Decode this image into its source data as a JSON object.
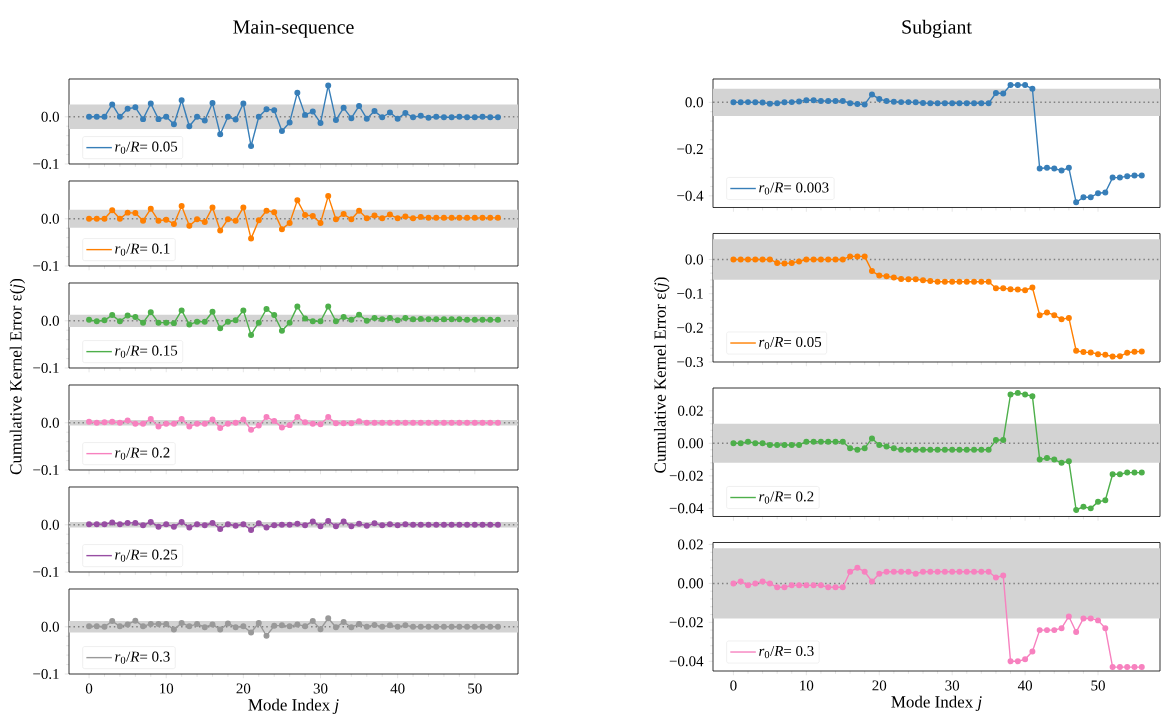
{
  "chart_data": [
    {
      "type": "line",
      "title": "Main-sequence",
      "x": [
        0,
        1,
        2,
        3,
        4,
        5,
        6,
        7,
        8,
        9,
        10,
        11,
        12,
        13,
        14,
        15,
        16,
        17,
        18,
        19,
        20,
        21,
        22,
        23,
        24,
        25,
        26,
        27,
        28,
        29,
        30,
        31,
        32,
        33,
        34,
        35,
        36,
        37,
        38,
        39,
        40,
        41,
        42,
        43,
        44,
        45,
        46,
        47,
        48,
        49,
        50,
        51,
        52,
        53
      ],
      "xlim": [
        -2.6,
        55.6
      ],
      "xticks": [
        0,
        10,
        20,
        30,
        40,
        50
      ],
      "ylim": [
        -0.1,
        0.08
      ],
      "yticks": [
        {
          "value": -0.1,
          "label": "−0.1"
        },
        {
          "value": 0,
          "label": "0.0"
        }
      ],
      "tick_labels": "y",
      "legend": "bottom left",
      "marker": "circle",
      "series": [
        {
          "name": "*r*$_{0}$/*R*= 0.05",
          "color": "#377eb8",
          "values": [
            0,
            0,
            0,
            0.026,
            0,
            0.017,
            0.02,
            -0.005,
            0.028,
            -0.005,
            0,
            -0.016,
            0.035,
            -0.02,
            0,
            -0.008,
            0.029,
            -0.037,
            0,
            -0.006,
            0.028,
            -0.062,
            0,
            0.016,
            0.014,
            -0.03,
            -0.012,
            0.051,
            0.004,
            0.011,
            -0.013,
            0.066,
            -0.007,
            0.019,
            -0.003,
            0.023,
            -0.004,
            0.012,
            -0.001,
            0.009,
            -0.004,
            0.008,
            -0.001,
            0.002,
            -0.002,
            0,
            -0.001,
            -0.001,
            0,
            -0.001,
            -0.001,
            0,
            -0.001,
            -0.001
          ]
        }
      ],
      "bands": [
        {
          "axis": "y",
          "from": -0.026,
          "to": 0.026,
          "color": "#d3d3d3"
        }
      ],
      "ref_lines": [
        {
          "axis": "y",
          "value": 0,
          "color": "#808080",
          "line_style": "dotted"
        }
      ]
    },
    {
      "type": "line",
      "x": [
        0,
        1,
        2,
        3,
        4,
        5,
        6,
        7,
        8,
        9,
        10,
        11,
        12,
        13,
        14,
        15,
        16,
        17,
        18,
        19,
        20,
        21,
        22,
        23,
        24,
        25,
        26,
        27,
        28,
        29,
        30,
        31,
        32,
        33,
        34,
        35,
        36,
        37,
        38,
        39,
        40,
        41,
        42,
        43,
        44,
        45,
        46,
        47,
        48,
        49,
        50,
        51,
        52,
        53
      ],
      "xlim": [
        -2.6,
        55.6
      ],
      "xticks": [
        0,
        10,
        20,
        30,
        40,
        50
      ],
      "ylim": [
        -0.1,
        0.08
      ],
      "yticks": [
        {
          "value": -0.1,
          "label": "−0.1"
        },
        {
          "value": 0,
          "label": "0.0"
        }
      ],
      "tick_labels": "y",
      "legend": "bottom left",
      "marker": "circle",
      "series": [
        {
          "name": "*r*$_{0}$/*R*= 0.1",
          "color": "#ff7f00",
          "values": [
            0,
            0,
            0,
            0.018,
            0,
            0.013,
            0.012,
            -0.004,
            0.021,
            -0.004,
            -0.002,
            -0.011,
            0.027,
            -0.015,
            -0.001,
            -0.007,
            0.024,
            -0.025,
            -0.001,
            -0.004,
            0.024,
            -0.042,
            -0.003,
            0.017,
            0.014,
            -0.022,
            -0.009,
            0.039,
            0.008,
            0.006,
            -0.009,
            0.048,
            -0.001,
            0.01,
            -0.001,
            0.017,
            0.001,
            0.007,
            0.001,
            0.009,
            0.001,
            0.005,
            0.001,
            0.004,
            0.002,
            0.002,
            0.002,
            0.002,
            0.002,
            0.002,
            0.002,
            0.002,
            0.002,
            0.002
          ]
        }
      ],
      "bands": [
        {
          "axis": "y",
          "from": -0.019,
          "to": 0.019,
          "color": "#d3d3d3"
        }
      ],
      "ref_lines": [
        {
          "axis": "y",
          "value": 0,
          "color": "#808080",
          "line_style": "dotted"
        }
      ]
    },
    {
      "type": "line",
      "ylabel": "Cumulative Kernel Error ε(*j*)",
      "x": [
        0,
        1,
        2,
        3,
        4,
        5,
        6,
        7,
        8,
        9,
        10,
        11,
        12,
        13,
        14,
        15,
        16,
        17,
        18,
        19,
        20,
        21,
        22,
        23,
        24,
        25,
        26,
        27,
        28,
        29,
        30,
        31,
        32,
        33,
        34,
        35,
        36,
        37,
        38,
        39,
        40,
        41,
        42,
        43,
        44,
        45,
        46,
        47,
        48,
        49,
        50,
        51,
        52,
        53
      ],
      "xlim": [
        -2.6,
        55.6
      ],
      "xticks": [
        0,
        10,
        20,
        30,
        40,
        50
      ],
      "ylim": [
        -0.1,
        0.08
      ],
      "yticks": [
        {
          "value": -0.1,
          "label": "−0.1"
        },
        {
          "value": 0,
          "label": "0.0"
        }
      ],
      "tick_labels": "y",
      "legend": "bottom left",
      "marker": "circle",
      "series": [
        {
          "name": "*r*$_{0}$/*R*= 0.15",
          "color": "#4daf4a",
          "values": [
            0.002,
            -0.001,
            0.001,
            0.012,
            -0.001,
            0.011,
            0.008,
            -0.004,
            0.018,
            -0.004,
            -0.004,
            -0.005,
            0.022,
            -0.008,
            -0.002,
            -0.002,
            0.019,
            -0.016,
            -0.002,
            0.001,
            0.022,
            -0.03,
            -0.004,
            0.025,
            0.012,
            -0.021,
            -0.004,
            0.03,
            0.005,
            -0.001,
            -0.001,
            0.03,
            -0.001,
            0.008,
            0.002,
            0.013,
            0,
            0.006,
            0.003,
            0.006,
            0.001,
            0.006,
            0.003,
            0.004,
            0.003,
            0.003,
            0.003,
            0.003,
            0.003,
            0.002,
            0.002,
            0.002,
            0.002,
            0.002
          ]
        }
      ],
      "bands": [
        {
          "axis": "y",
          "from": -0.013,
          "to": 0.013,
          "color": "#d3d3d3"
        }
      ],
      "ref_lines": [
        {
          "axis": "y",
          "value": 0,
          "color": "#808080",
          "line_style": "dotted"
        }
      ]
    },
    {
      "type": "line",
      "x": [
        0,
        1,
        2,
        3,
        4,
        5,
        6,
        7,
        8,
        9,
        10,
        11,
        12,
        13,
        14,
        15,
        16,
        17,
        18,
        19,
        20,
        21,
        22,
        23,
        24,
        25,
        26,
        27,
        28,
        29,
        30,
        31,
        32,
        33,
        34,
        35,
        36,
        37,
        38,
        39,
        40,
        41,
        42,
        43,
        44,
        45,
        46,
        47,
        48,
        49,
        50,
        51,
        52,
        53
      ],
      "xlim": [
        -2.6,
        55.6
      ],
      "xticks": [
        0,
        10,
        20,
        30,
        40,
        50
      ],
      "ylim": [
        -0.1,
        0.08
      ],
      "yticks": [
        {
          "value": -0.1,
          "label": "−0.1"
        },
        {
          "value": 0,
          "label": "0.0"
        }
      ],
      "tick_labels": "y",
      "legend": "bottom left",
      "marker": "circle",
      "series": [
        {
          "name": "*r*$_{0}$/*R*= 0.2",
          "color": "#f781bf",
          "values": [
            0.002,
            0,
            0.001,
            0.002,
            0,
            0.005,
            -0.002,
            -0.002,
            0.008,
            -0.008,
            -0.002,
            -0.002,
            0.008,
            -0.008,
            -0.002,
            -0.002,
            0.007,
            -0.011,
            -0.002,
            0,
            0.007,
            -0.015,
            -0.006,
            0.012,
            0.004,
            -0.01,
            -0.005,
            0.012,
            0.001,
            -0.002,
            -0.003,
            0.012,
            -0.001,
            -0.001,
            -0.001,
            0.003,
            0,
            0,
            0,
            0,
            0,
            0,
            0,
            0,
            0,
            0,
            0,
            0,
            0,
            0,
            0,
            0,
            0,
            0
          ]
        }
      ],
      "bands": [
        {
          "axis": "y",
          "from": -0.006,
          "to": 0.006,
          "color": "#d3d3d3"
        }
      ],
      "ref_lines": [
        {
          "axis": "y",
          "value": 0,
          "color": "#808080",
          "line_style": "dotted"
        }
      ]
    },
    {
      "type": "line",
      "x": [
        0,
        1,
        2,
        3,
        4,
        5,
        6,
        7,
        8,
        9,
        10,
        11,
        12,
        13,
        14,
        15,
        16,
        17,
        18,
        19,
        20,
        21,
        22,
        23,
        24,
        25,
        26,
        27,
        28,
        29,
        30,
        31,
        32,
        33,
        34,
        35,
        36,
        37,
        38,
        39,
        40,
        41,
        42,
        43,
        44,
        45,
        46,
        47,
        48,
        49,
        50,
        51,
        52,
        53
      ],
      "xlim": [
        -2.6,
        55.6
      ],
      "xticks": [
        0,
        10,
        20,
        30,
        40,
        50
      ],
      "ylim": [
        -0.1,
        0.08
      ],
      "yticks": [
        {
          "value": -0.1,
          "label": "−0.1"
        },
        {
          "value": 0,
          "label": "0.0"
        }
      ],
      "tick_labels": "y",
      "legend": "bottom left",
      "marker": "circle",
      "series": [
        {
          "name": "*r*$_{0}$/*R*= 0.25",
          "color": "#984ea3",
          "values": [
            0.001,
            0.001,
            0.001,
            0.005,
            0.001,
            0.004,
            0.004,
            -0.001,
            0.006,
            -0.004,
            0.001,
            -0.004,
            0.006,
            -0.006,
            0.001,
            -0.001,
            0.004,
            -0.009,
            0.001,
            -0.002,
            0.001,
            -0.011,
            0.003,
            -0.006,
            -0.001,
            0,
            0,
            0.002,
            -0.001,
            0.007,
            -0.003,
            0.008,
            -0.003,
            0.007,
            -0.003,
            0.002,
            -0.002,
            0.003,
            -0.001,
            0.001,
            -0.001,
            0.001,
            0,
            0,
            0,
            0,
            0,
            0,
            0,
            0,
            0,
            0,
            0,
            0
          ]
        }
      ],
      "bands": [
        {
          "axis": "y",
          "from": -0.006,
          "to": 0.006,
          "color": "#d3d3d3"
        }
      ],
      "ref_lines": [
        {
          "axis": "y",
          "value": 0,
          "color": "#808080",
          "line_style": "dotted"
        }
      ]
    },
    {
      "type": "line",
      "xlabel": "Mode Index *j*",
      "x": [
        0,
        1,
        2,
        3,
        4,
        5,
        6,
        7,
        8,
        9,
        10,
        11,
        12,
        13,
        14,
        15,
        16,
        17,
        18,
        19,
        20,
        21,
        22,
        23,
        24,
        25,
        26,
        27,
        28,
        29,
        30,
        31,
        32,
        33,
        34,
        35,
        36,
        37,
        38,
        39,
        40,
        41,
        42,
        43,
        44,
        45,
        46,
        47,
        48,
        49,
        50,
        51,
        52,
        53
      ],
      "xlim": [
        -2.6,
        55.6
      ],
      "xticks": [
        0,
        10,
        20,
        30,
        40,
        50
      ],
      "ylim": [
        -0.1,
        0.08
      ],
      "yticks": [
        {
          "value": -0.1,
          "label": "−0.1"
        },
        {
          "value": 0,
          "label": "0.0"
        }
      ],
      "legend": "bottom left",
      "marker": "circle",
      "series": [
        {
          "name": "*r*$_{0}$/*R*= 0.3",
          "color": "#999999",
          "values": [
            0.001,
            0.001,
            0,
            0.012,
            0.001,
            0.005,
            0.013,
            0.001,
            0.006,
            0.006,
            0.006,
            -0.006,
            0.008,
            0.001,
            0.006,
            -0.001,
            0.005,
            -0.006,
            0.007,
            -0.001,
            0.001,
            -0.012,
            0.008,
            -0.019,
            0.002,
            0.003,
            0.001,
            0.005,
            0.001,
            0.012,
            -0.005,
            0.018,
            -0.001,
            0.01,
            -0.001,
            0.006,
            0,
            0.004,
            0,
            0.003,
            0,
            0.003,
            0,
            0,
            0,
            0,
            0,
            0,
            0,
            0,
            0,
            0,
            0,
            0
          ]
        }
      ],
      "bands": [
        {
          "axis": "y",
          "from": -0.012,
          "to": 0.012,
          "color": "#d3d3d3"
        }
      ],
      "ref_lines": [
        {
          "axis": "y",
          "value": 0,
          "color": "#808080",
          "line_style": "dotted"
        }
      ]
    },
    {
      "type": "line",
      "title": "Subgiant",
      "x": [
        0,
        1,
        2,
        3,
        4,
        5,
        6,
        7,
        8,
        9,
        10,
        11,
        12,
        13,
        14,
        15,
        16,
        17,
        18,
        19,
        20,
        21,
        22,
        23,
        24,
        25,
        26,
        27,
        28,
        29,
        30,
        31,
        32,
        33,
        34,
        35,
        36,
        37,
        38,
        39,
        40,
        41,
        42,
        43,
        44,
        45,
        46,
        47,
        48,
        49,
        50,
        51,
        52,
        53,
        54,
        55,
        56
      ],
      "xlim": [
        -2.8,
        58.5
      ],
      "xticks": [
        0,
        10,
        20,
        30,
        40,
        50
      ],
      "ylim": [
        -0.45,
        0.1
      ],
      "yticks": [
        {
          "value": -0.4,
          "label": "−0.4"
        },
        {
          "value": -0.2,
          "label": "−0.2"
        },
        {
          "value": 0,
          "label": "0.0"
        }
      ],
      "tick_labels": "y",
      "legend": "bottom left",
      "marker": "circle",
      "series": [
        {
          "name": "*r*$_{0}$/*R*= 0.003",
          "color": "#377eb8",
          "values": [
            0,
            0,
            0.001,
            0,
            -0.001,
            -0.006,
            -0.004,
            0,
            0.001,
            0.004,
            0.009,
            0.009,
            0.006,
            0.006,
            0.006,
            0.006,
            -0.004,
            -0.007,
            -0.009,
            0.034,
            0.014,
            0.006,
            0.003,
            0.001,
            0.001,
            0,
            -0.003,
            -0.004,
            -0.004,
            -0.004,
            -0.004,
            -0.004,
            -0.004,
            -0.004,
            -0.004,
            -0.004,
            0.04,
            0.038,
            0.074,
            0.074,
            0.074,
            0.058,
            -0.283,
            -0.28,
            -0.283,
            -0.292,
            -0.28,
            -0.428,
            -0.406,
            -0.406,
            -0.389,
            -0.386,
            -0.322,
            -0.322,
            -0.316,
            -0.313,
            -0.313
          ]
        }
      ],
      "bands": [
        {
          "axis": "y",
          "from": -0.058,
          "to": 0.058,
          "color": "#d3d3d3"
        }
      ],
      "ref_lines": [
        {
          "axis": "y",
          "value": 0,
          "color": "#808080",
          "line_style": "dotted"
        }
      ]
    },
    {
      "type": "line",
      "ylabel": "Cumulative Kernel Error ε(*j*)",
      "x": [
        0,
        1,
        2,
        3,
        4,
        5,
        6,
        7,
        8,
        9,
        10,
        11,
        12,
        13,
        14,
        15,
        16,
        17,
        18,
        19,
        20,
        21,
        22,
        23,
        24,
        25,
        26,
        27,
        28,
        29,
        30,
        31,
        32,
        33,
        34,
        35,
        36,
        37,
        38,
        39,
        40,
        41,
        42,
        43,
        44,
        45,
        46,
        47,
        48,
        49,
        50,
        51,
        52,
        53,
        54,
        55,
        56
      ],
      "xlim": [
        -2.8,
        58.5
      ],
      "xticks": [
        0,
        10,
        20,
        30,
        40,
        50
      ],
      "ylim": [
        -0.3,
        0.076
      ],
      "yticks": [
        {
          "value": -0.3,
          "label": "−0.3"
        },
        {
          "value": -0.2,
          "label": "−0.2"
        },
        {
          "value": -0.1,
          "label": "−0.1"
        },
        {
          "value": 0,
          "label": "0.0"
        }
      ],
      "tick_labels": "y",
      "legend": "bottom left",
      "marker": "circle",
      "series": [
        {
          "name": "*r*$_{0}$/*R*= 0.05",
          "color": "#ff7f00",
          "values": [
            0,
            0,
            0,
            0,
            0,
            0,
            -0.01,
            -0.012,
            -0.01,
            -0.006,
            0,
            0,
            0,
            0,
            0,
            0,
            0.009,
            0.009,
            0.009,
            -0.034,
            -0.047,
            -0.049,
            -0.053,
            -0.057,
            -0.058,
            -0.058,
            -0.061,
            -0.063,
            -0.065,
            -0.065,
            -0.065,
            -0.065,
            -0.065,
            -0.065,
            -0.065,
            -0.065,
            -0.084,
            -0.084,
            -0.087,
            -0.088,
            -0.09,
            -0.082,
            -0.163,
            -0.155,
            -0.163,
            -0.175,
            -0.171,
            -0.267,
            -0.271,
            -0.272,
            -0.277,
            -0.279,
            -0.284,
            -0.283,
            -0.273,
            -0.27,
            -0.269
          ]
        }
      ],
      "bands": [
        {
          "axis": "y",
          "from": -0.059,
          "to": 0.059,
          "color": "#d3d3d3"
        }
      ],
      "ref_lines": [
        {
          "axis": "y",
          "value": 0,
          "color": "#808080",
          "line_style": "dotted"
        }
      ]
    },
    {
      "type": "line",
      "x": [
        0,
        1,
        2,
        3,
        4,
        5,
        6,
        7,
        8,
        9,
        10,
        11,
        12,
        13,
        14,
        15,
        16,
        17,
        18,
        19,
        20,
        21,
        22,
        23,
        24,
        25,
        26,
        27,
        28,
        29,
        30,
        31,
        32,
        33,
        34,
        35,
        36,
        37,
        38,
        39,
        40,
        41,
        42,
        43,
        44,
        45,
        46,
        47,
        48,
        49,
        50,
        51,
        52,
        53,
        54,
        55,
        56
      ],
      "xlim": [
        -2.8,
        58.5
      ],
      "xticks": [
        0,
        10,
        20,
        30,
        40,
        50
      ],
      "ylim": [
        -0.045,
        0.034
      ],
      "yticks": [
        {
          "value": -0.04,
          "label": "−0.04"
        },
        {
          "value": -0.02,
          "label": "−0.02"
        },
        {
          "value": 0,
          "label": "0.00"
        },
        {
          "value": 0.02,
          "label": "0.02"
        }
      ],
      "tick_labels": "y",
      "legend": "bottom left",
      "marker": "circle",
      "series": [
        {
          "name": "*r*$_{0}$/*R*= 0.2",
          "color": "#4daf4a",
          "values": [
            0,
            0,
            0.001,
            0,
            0,
            -0.001,
            -0.001,
            -0.001,
            -0.001,
            -0.001,
            0.001,
            0.001,
            0.001,
            0.001,
            0.001,
            0.001,
            -0.003,
            -0.004,
            -0.003,
            0.003,
            -0.001,
            -0.002,
            -0.003,
            -0.004,
            -0.004,
            -0.004,
            -0.004,
            -0.004,
            -0.004,
            -0.004,
            -0.004,
            -0.004,
            -0.004,
            -0.004,
            -0.004,
            -0.004,
            0.002,
            0.002,
            0.03,
            0.031,
            0.03,
            0.029,
            -0.01,
            -0.009,
            -0.01,
            -0.012,
            -0.011,
            -0.041,
            -0.039,
            -0.04,
            -0.036,
            -0.035,
            -0.019,
            -0.019,
            -0.018,
            -0.018,
            -0.018
          ]
        }
      ],
      "bands": [
        {
          "axis": "y",
          "from": -0.012,
          "to": 0.012,
          "color": "#d3d3d3"
        }
      ],
      "ref_lines": [
        {
          "axis": "y",
          "value": 0,
          "color": "#808080",
          "line_style": "dotted"
        }
      ]
    },
    {
      "type": "line",
      "xlabel": "Mode Index *j*",
      "x": [
        0,
        1,
        2,
        3,
        4,
        5,
        6,
        7,
        8,
        9,
        10,
        11,
        12,
        13,
        14,
        15,
        16,
        17,
        18,
        19,
        20,
        21,
        22,
        23,
        24,
        25,
        26,
        27,
        28,
        29,
        30,
        31,
        32,
        33,
        34,
        35,
        36,
        37,
        38,
        39,
        40,
        41,
        42,
        43,
        44,
        45,
        46,
        47,
        48,
        49,
        50,
        51,
        52,
        53,
        54,
        55,
        56
      ],
      "xlim": [
        -2.8,
        58.5
      ],
      "xticks": [
        0,
        10,
        20,
        30,
        40,
        50
      ],
      "ylim": [
        -0.045,
        0.021
      ],
      "yticks": [
        {
          "value": -0.04,
          "label": "−0.04"
        },
        {
          "value": -0.02,
          "label": "−0.02"
        },
        {
          "value": 0,
          "label": "0.00"
        },
        {
          "value": 0.02,
          "label": "0.02"
        }
      ],
      "legend": "bottom left",
      "marker": "circle",
      "series": [
        {
          "name": "*r*$_{0}$/*R*= 0.3",
          "color": "#f781bf",
          "values": [
            0,
            0.001,
            -0.001,
            0,
            0.001,
            0,
            -0.002,
            -0.002,
            -0.001,
            -0.001,
            -0.001,
            -0.001,
            -0.001,
            -0.002,
            -0.002,
            -0.002,
            0.006,
            0.008,
            0.006,
            0.001,
            0.005,
            0.006,
            0.006,
            0.006,
            0.006,
            0.005,
            0.006,
            0.006,
            0.006,
            0.006,
            0.006,
            0.006,
            0.006,
            0.006,
            0.006,
            0.006,
            0.003,
            0.004,
            -0.04,
            -0.04,
            -0.039,
            -0.035,
            -0.024,
            -0.024,
            -0.024,
            -0.023,
            -0.017,
            -0.025,
            -0.018,
            -0.018,
            -0.019,
            -0.023,
            -0.043,
            -0.043,
            -0.043,
            -0.043,
            -0.043
          ]
        }
      ],
      "bands": [
        {
          "axis": "y",
          "from": -0.018,
          "to": 0.018,
          "color": "#d3d3d3"
        }
      ],
      "ref_lines": [
        {
          "axis": "y",
          "value": 0,
          "color": "#808080",
          "line_style": "dotted"
        }
      ]
    }
  ]
}
